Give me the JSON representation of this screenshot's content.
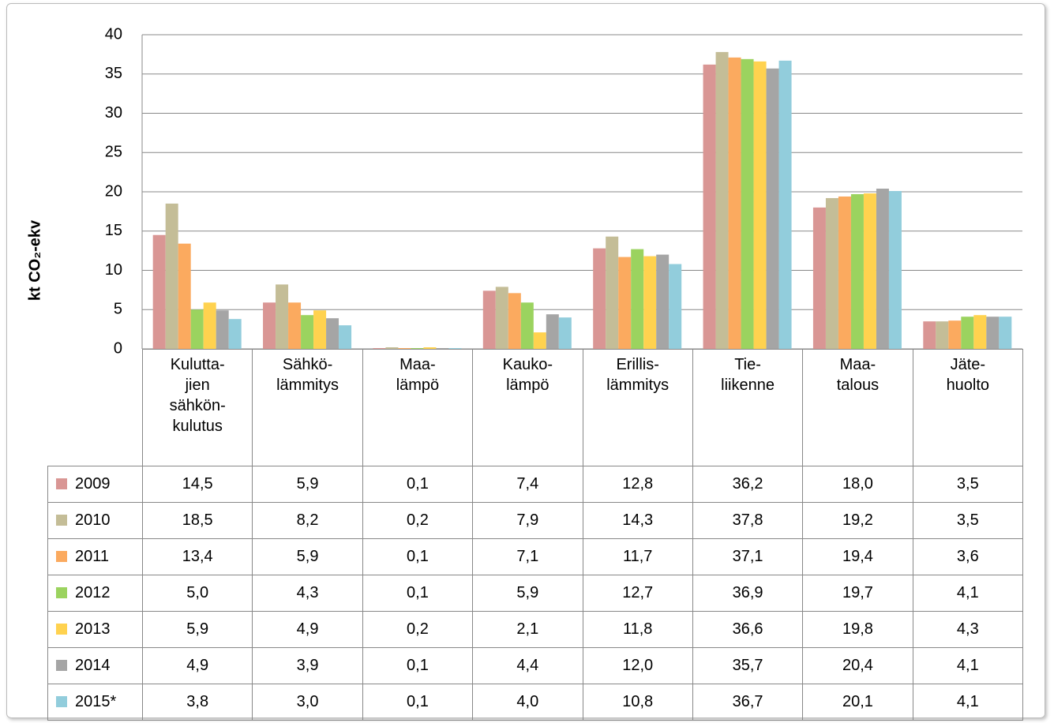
{
  "chart_data": {
    "type": "bar",
    "y_label": "kt CO₂-ekv",
    "categories": [
      "Kulutta-\njien\nsähkön-\nkulutus",
      "Sähkö-\nlämmitys",
      "Maa-\nlämpö",
      "Kauko-\nlämpö",
      "Erillis-\nlämmitys",
      "Tie-\nliikenne",
      "Maa-\ntalous",
      "Jäte-\nhuolto"
    ],
    "series": [
      {
        "name": "2009",
        "color": "#d99694",
        "values": [
          14.5,
          5.9,
          0.1,
          7.4,
          12.8,
          36.2,
          18.0,
          3.5
        ],
        "value_labels": [
          "14,5",
          "5,9",
          "0,1",
          "7,4",
          "12,8",
          "36,2",
          "18,0",
          "3,5"
        ]
      },
      {
        "name": "2010",
        "color": "#c4bd97",
        "values": [
          18.5,
          8.2,
          0.2,
          7.9,
          14.3,
          37.8,
          19.2,
          3.5
        ],
        "value_labels": [
          "18,5",
          "8,2",
          "0,2",
          "7,9",
          "14,3",
          "37,8",
          "19,2",
          "3,5"
        ]
      },
      {
        "name": "2011",
        "color": "#fbaa5f",
        "values": [
          13.4,
          5.9,
          0.1,
          7.1,
          11.7,
          37.1,
          19.4,
          3.6
        ],
        "value_labels": [
          "13,4",
          "5,9",
          "0,1",
          "7,1",
          "11,7",
          "37,1",
          "19,4",
          "3,6"
        ]
      },
      {
        "name": "2012",
        "color": "#9bd35f",
        "values": [
          5.0,
          4.3,
          0.1,
          5.9,
          12.7,
          36.9,
          19.7,
          4.1
        ],
        "value_labels": [
          "5,0",
          "4,3",
          "0,1",
          "5,9",
          "12,7",
          "36,9",
          "19,7",
          "4,1"
        ]
      },
      {
        "name": "2013",
        "color": "#ffd24f",
        "values": [
          5.9,
          4.9,
          0.2,
          2.1,
          11.8,
          36.6,
          19.8,
          4.3
        ],
        "value_labels": [
          "5,9",
          "4,9",
          "0,2",
          "2,1",
          "11,8",
          "36,6",
          "19,8",
          "4,3"
        ]
      },
      {
        "name": "2014",
        "color": "#a5a5a5",
        "values": [
          4.9,
          3.9,
          0.1,
          4.4,
          12.0,
          35.7,
          20.4,
          4.1
        ],
        "value_labels": [
          "4,9",
          "3,9",
          "0,1",
          "4,4",
          "12,0",
          "35,7",
          "20,4",
          "4,1"
        ]
      },
      {
        "name": "2015*",
        "color": "#92cddc",
        "values": [
          3.8,
          3.0,
          0.1,
          4.0,
          10.8,
          36.7,
          20.1,
          4.1
        ],
        "value_labels": [
          "3,8",
          "3,0",
          "0,1",
          "4,0",
          "10,8",
          "36,7",
          "20,1",
          "4,1"
        ]
      }
    ],
    "ylim": [
      0,
      40
    ],
    "yticks": [
      0,
      5,
      10,
      15,
      20,
      25,
      30,
      35,
      40
    ],
    "grid": true
  }
}
